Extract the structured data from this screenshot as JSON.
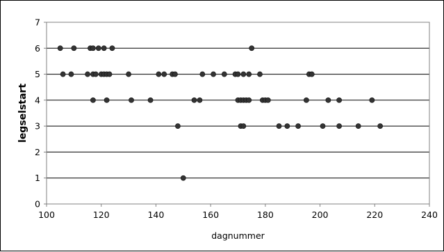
{
  "chart_data": {
    "type": "scatter",
    "xlabel": "dagnummer",
    "ylabel": "legselstart",
    "xlim": [
      100,
      240
    ],
    "ylim": [
      0,
      7
    ],
    "xticks": [
      "100",
      "120",
      "140",
      "160",
      "180",
      "200",
      "220",
      "240"
    ],
    "yticks": [
      "0",
      "1",
      "2",
      "3",
      "4",
      "5",
      "6",
      "7"
    ],
    "grid": "horizontal",
    "legend": "none",
    "marker_color": "#333333",
    "points": [
      {
        "x": 105,
        "y": 6
      },
      {
        "x": 106,
        "y": 5
      },
      {
        "x": 109,
        "y": 5
      },
      {
        "x": 110,
        "y": 6
      },
      {
        "x": 115,
        "y": 5
      },
      {
        "x": 116,
        "y": 6
      },
      {
        "x": 117,
        "y": 6
      },
      {
        "x": 117,
        "y": 5
      },
      {
        "x": 117,
        "y": 4
      },
      {
        "x": 118,
        "y": 5
      },
      {
        "x": 119,
        "y": 6
      },
      {
        "x": 120,
        "y": 5
      },
      {
        "x": 121,
        "y": 6
      },
      {
        "x": 121,
        "y": 5
      },
      {
        "x": 122,
        "y": 5
      },
      {
        "x": 122,
        "y": 4
      },
      {
        "x": 123,
        "y": 5
      },
      {
        "x": 124,
        "y": 6
      },
      {
        "x": 130,
        "y": 5
      },
      {
        "x": 131,
        "y": 4
      },
      {
        "x": 138,
        "y": 4
      },
      {
        "x": 141,
        "y": 5
      },
      {
        "x": 143,
        "y": 5
      },
      {
        "x": 146,
        "y": 5
      },
      {
        "x": 147,
        "y": 5
      },
      {
        "x": 148,
        "y": 3
      },
      {
        "x": 150,
        "y": 1
      },
      {
        "x": 154,
        "y": 4
      },
      {
        "x": 156,
        "y": 4
      },
      {
        "x": 157,
        "y": 5
      },
      {
        "x": 161,
        "y": 5
      },
      {
        "x": 165,
        "y": 5
      },
      {
        "x": 169,
        "y": 5
      },
      {
        "x": 170,
        "y": 5
      },
      {
        "x": 170,
        "y": 4
      },
      {
        "x": 171,
        "y": 4
      },
      {
        "x": 171,
        "y": 3
      },
      {
        "x": 172,
        "y": 5
      },
      {
        "x": 172,
        "y": 4
      },
      {
        "x": 172,
        "y": 3
      },
      {
        "x": 173,
        "y": 4
      },
      {
        "x": 174,
        "y": 5
      },
      {
        "x": 174,
        "y": 4
      },
      {
        "x": 175,
        "y": 6
      },
      {
        "x": 178,
        "y": 5
      },
      {
        "x": 179,
        "y": 4
      },
      {
        "x": 180,
        "y": 4
      },
      {
        "x": 181,
        "y": 4
      },
      {
        "x": 185,
        "y": 3
      },
      {
        "x": 188,
        "y": 3
      },
      {
        "x": 192,
        "y": 3
      },
      {
        "x": 195,
        "y": 4
      },
      {
        "x": 196,
        "y": 5
      },
      {
        "x": 197,
        "y": 5
      },
      {
        "x": 201,
        "y": 3
      },
      {
        "x": 203,
        "y": 4
      },
      {
        "x": 207,
        "y": 4
      },
      {
        "x": 207,
        "y": 3
      },
      {
        "x": 214,
        "y": 3
      },
      {
        "x": 219,
        "y": 4
      },
      {
        "x": 222,
        "y": 3
      }
    ]
  }
}
